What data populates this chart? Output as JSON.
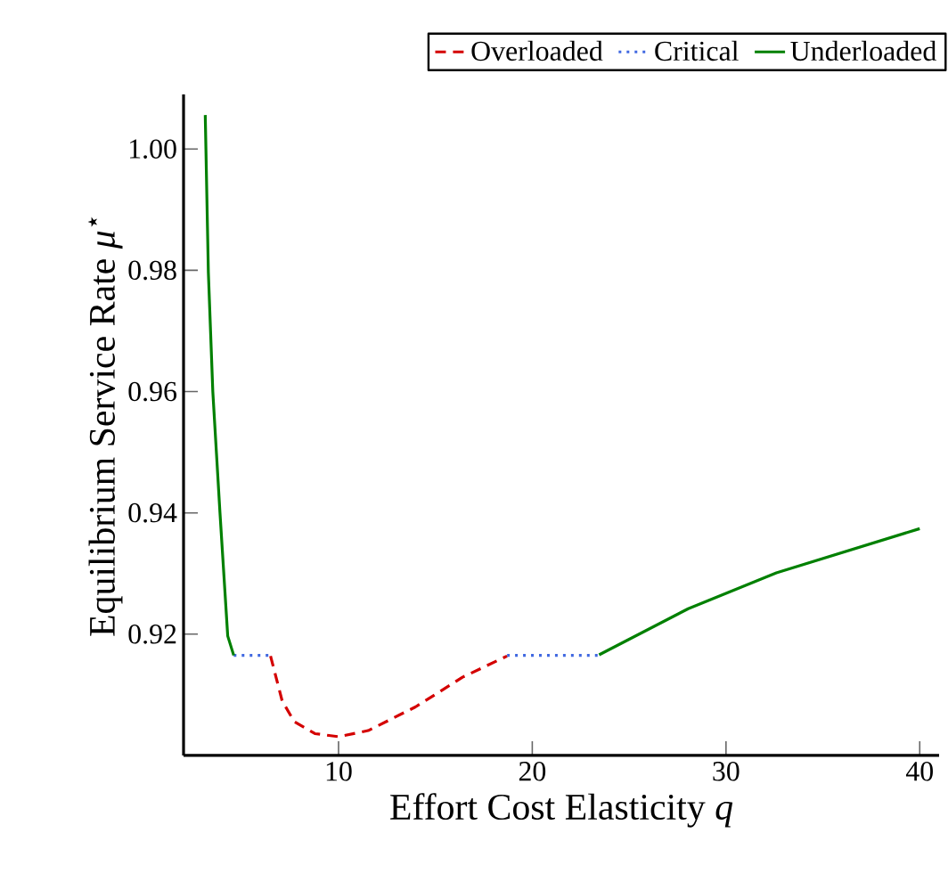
{
  "chart_data": {
    "type": "line",
    "xlabel": "Effort Cost Elasticity *q*",
    "ylabel": "Equilibrium Service Rate *μ*$^{⋆}$",
    "series": [
      {
        "name": "Overloaded",
        "color": "#d40000",
        "line_style": "dashed",
        "x": [
          6.49,
          7.09,
          7.71,
          8.78,
          10.0,
          11.53,
          13.97,
          16.4,
          18.7
        ],
        "values": [
          0.9164,
          0.909,
          0.9056,
          0.9036,
          0.9031,
          0.9041,
          0.908,
          0.9129,
          0.9164
        ]
      },
      {
        "name": "Critical",
        "color": "#4169e1",
        "line_style": "dotted",
        "x": [
          4.59,
          6.49,
          null,
          18.7,
          23.45
        ],
        "values": [
          0.9165,
          0.9165,
          null,
          0.9165,
          0.9165
        ]
      },
      {
        "name": "Underloaded",
        "color": "#008000",
        "line_style": "solid",
        "x": [
          3.12,
          3.28,
          3.51,
          3.88,
          4.28,
          4.59,
          null,
          23.45,
          28.05,
          32.6,
          40.0
        ],
        "values": [
          1.0056,
          0.9797,
          0.96,
          0.94,
          0.9197,
          0.9165,
          null,
          0.9166,
          0.9242,
          0.9301,
          0.9374
        ]
      }
    ],
    "marker": "none",
    "xlim": [
      2,
      41
    ],
    "ylim": [
      0.9,
      1.009
    ],
    "xticks": [
      10,
      20,
      30,
      40
    ],
    "yticks": [
      {
        "value": 0.92,
        "label": "0.92"
      },
      {
        "value": 0.94,
        "label": "0.94"
      },
      {
        "value": 0.96,
        "label": "0.96"
      },
      {
        "value": 0.98,
        "label": "0.98"
      },
      {
        "value": 1.0,
        "label": "1.00"
      }
    ],
    "grid": false,
    "legend": "top right"
  }
}
